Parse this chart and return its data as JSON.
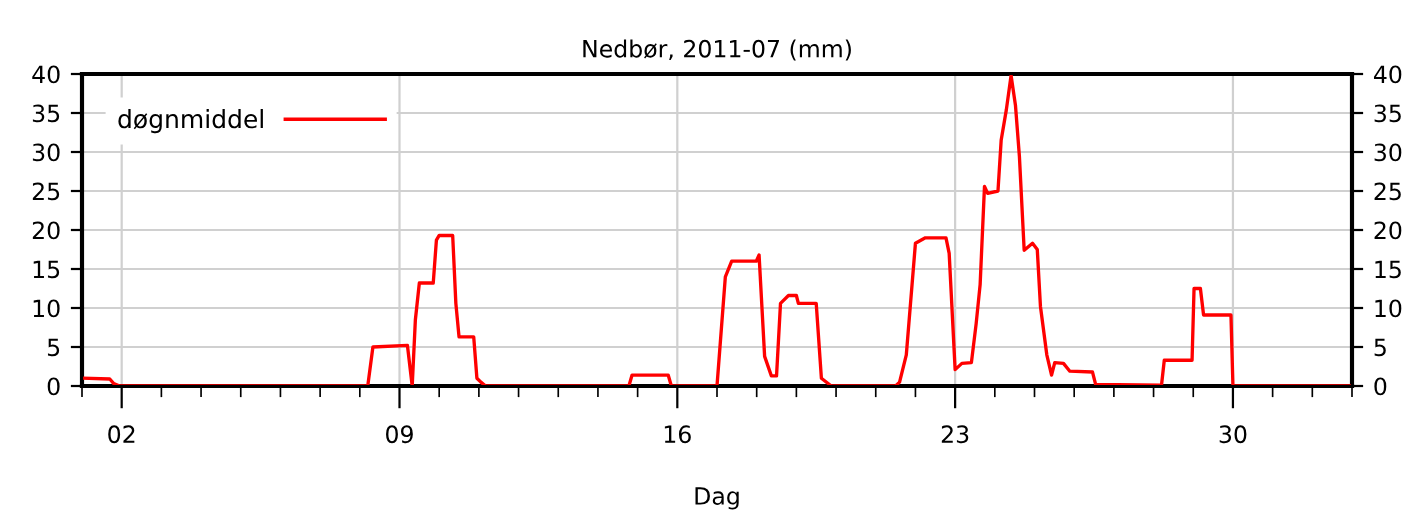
{
  "chart_data": {
    "type": "line",
    "title": "Nedbør, 2011-07 (mm)",
    "xlabel": "Dag",
    "x": [
      1.0,
      1.7,
      1.8,
      1.95,
      8.2,
      8.33,
      9.2,
      9.32,
      9.4,
      9.5,
      9.85,
      9.93,
      10.0,
      10.34,
      10.42,
      10.5,
      10.87,
      10.95,
      11.05,
      11.17,
      14.78,
      14.86,
      15.77,
      15.85,
      17.0,
      17.21,
      17.37,
      17.99,
      18.06,
      18.2,
      18.37,
      18.5,
      18.6,
      18.8,
      19.0,
      19.05,
      19.5,
      19.63,
      19.88,
      21.5,
      21.6,
      21.77,
      22.0,
      22.25,
      22.77,
      22.85,
      23.0,
      23.17,
      23.41,
      23.53,
      23.63,
      23.74,
      23.82,
      24.08,
      24.16,
      24.29,
      24.41,
      24.52,
      24.62,
      24.74,
      24.95,
      25.07,
      25.15,
      25.31,
      25.43,
      25.51,
      25.73,
      25.89,
      26.46,
      26.54,
      28.2,
      28.27,
      28.97,
      29.02,
      29.18,
      29.26,
      29.95,
      30.0,
      33.0
    ],
    "series": [
      {
        "name": "døgnmiddel",
        "color": "#ff0000",
        "values": [
          1.0,
          0.9,
          0.3,
          0,
          0,
          5.0,
          5.2,
          0,
          8.5,
          13.2,
          13.2,
          18.7,
          19.3,
          19.3,
          10.6,
          6.3,
          6.3,
          1.0,
          0.5,
          0,
          0,
          1.4,
          1.4,
          0,
          0,
          14.0,
          16.0,
          16.0,
          16.8,
          3.8,
          1.3,
          1.3,
          10.6,
          11.6,
          11.6,
          10.6,
          10.6,
          1.0,
          0,
          0,
          0.5,
          4,
          18.3,
          19.0,
          19.0,
          17,
          2.1,
          2.9,
          3.0,
          8.0,
          13,
          25.6,
          24.7,
          25,
          31.5,
          35.4,
          39.8,
          36,
          29.4,
          17.4,
          18.3,
          17.5,
          10.2,
          4,
          1.4,
          3,
          2.9,
          1.9,
          1.8,
          0.2,
          0.1,
          3.3,
          3.3,
          12.5,
          12.5,
          9.1,
          9.1,
          0,
          0
        ]
      }
    ],
    "xlim": [
      1,
      33
    ],
    "xticks": [
      {
        "value": 1,
        "label": null
      },
      {
        "value": 2,
        "label": "02"
      },
      {
        "value": 3,
        "label": null
      },
      {
        "value": 4,
        "label": null
      },
      {
        "value": 5,
        "label": null
      },
      {
        "value": 6,
        "label": null
      },
      {
        "value": 7,
        "label": null
      },
      {
        "value": 8,
        "label": null
      },
      {
        "value": 9,
        "label": "09"
      },
      {
        "value": 10,
        "label": null
      },
      {
        "value": 11,
        "label": null
      },
      {
        "value": 12,
        "label": null
      },
      {
        "value": 13,
        "label": null
      },
      {
        "value": 14,
        "label": null
      },
      {
        "value": 15,
        "label": null
      },
      {
        "value": 16,
        "label": "16"
      },
      {
        "value": 17,
        "label": null
      },
      {
        "value": 18,
        "label": null
      },
      {
        "value": 19,
        "label": null
      },
      {
        "value": 20,
        "label": null
      },
      {
        "value": 21,
        "label": null
      },
      {
        "value": 22,
        "label": null
      },
      {
        "value": 23,
        "label": "23"
      },
      {
        "value": 24,
        "label": null
      },
      {
        "value": 25,
        "label": null
      },
      {
        "value": 26,
        "label": null
      },
      {
        "value": 27,
        "label": null
      },
      {
        "value": 28,
        "label": null
      },
      {
        "value": 29,
        "label": null
      },
      {
        "value": 30,
        "label": "30"
      },
      {
        "value": 31,
        "label": null
      },
      {
        "value": 32,
        "label": null
      },
      {
        "value": 33,
        "label": null
      }
    ],
    "ylim": [
      0,
      40
    ],
    "yticks": [
      0,
      5,
      10,
      15,
      20,
      25,
      30,
      35,
      40
    ],
    "y2lim": [
      0,
      40
    ],
    "y2ticks": [
      0,
      5,
      10,
      15,
      20,
      25,
      30,
      35,
      40
    ],
    "grid": true,
    "legend": "top left",
    "line_style": "solid",
    "marker": "none"
  }
}
